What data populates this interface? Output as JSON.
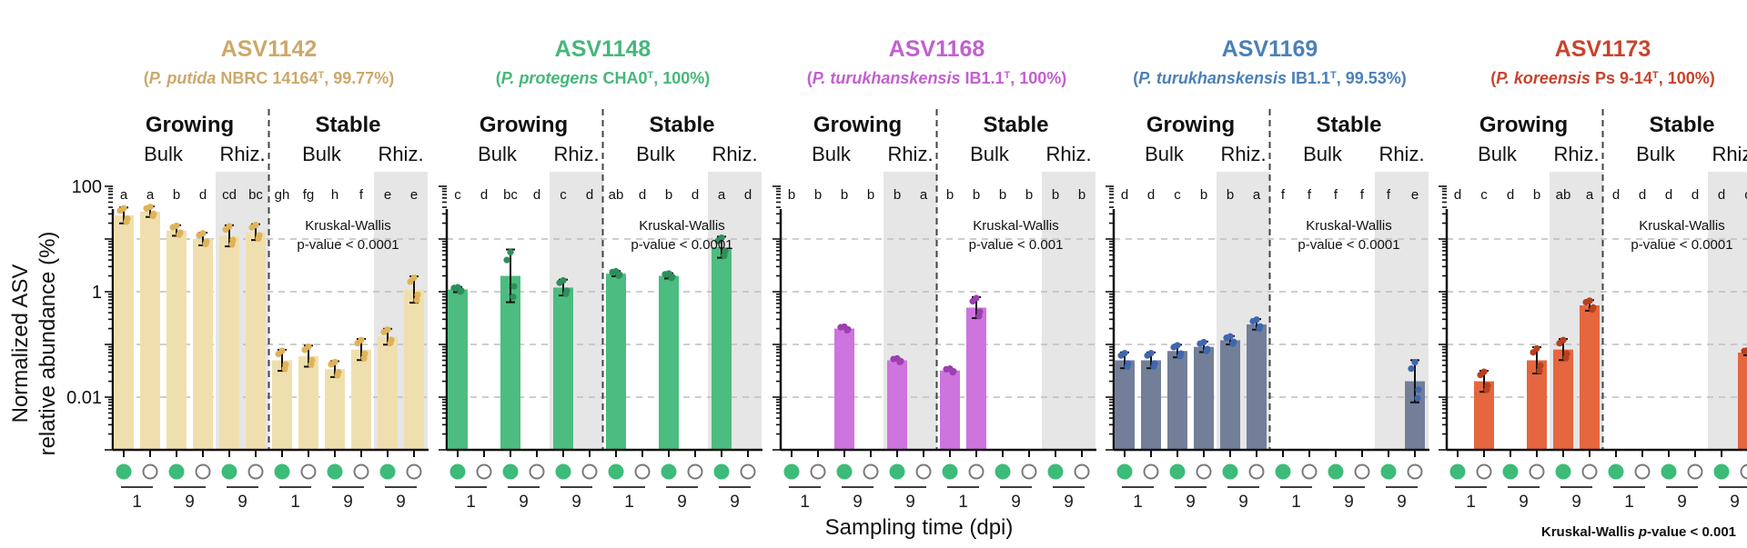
{
  "figure": {
    "ylabel_line1": "Normalized ASV",
    "ylabel_line2": "relative abundance (%)",
    "xlabel": "Sampling time (dpi)",
    "footnote_main": "Kruskal-Wallis ",
    "footnote_italic": "p",
    "footnote_tail": "-value < 0.001",
    "ytick_labels": [
      "100",
      "1",
      "0.01"
    ],
    "phase_growing": "Growing",
    "phase_stable": "Stable",
    "comp_bulk": "Bulk",
    "comp_rhiz": "Rhiz.",
    "colors": {
      "shade": "#e6e6e6",
      "marker_fill": "#3dbb78",
      "marker_stroke": "#7a7a7a",
      "ink": "#111111"
    }
  },
  "chart_data": [
    {
      "type": "bar",
      "asv": "ASV1142",
      "ref_italic": "P. putida",
      "ref_strain": " NBRC 14164",
      "ref_tail": ", 99.77%)",
      "title_color": "#cda86a",
      "bar_color": "#f0dfae",
      "dot_color": "#e0b35a",
      "kruskal_line1": "Kruskal-Wallis",
      "kruskal_line2": "p-value < 0.0001",
      "yscale": "log10",
      "ylim": [
        0.001,
        100
      ],
      "values": [
        28,
        33,
        14.5,
        10,
        11.5,
        13.5,
        0.05,
        0.06,
        0.034,
        0.08,
        0.14,
        1.1
      ],
      "errors": [
        0.15,
        0.1,
        0.1,
        0.12,
        0.2,
        0.15,
        0.2,
        0.2,
        0.15,
        0.2,
        0.15,
        0.25
      ],
      "letters": [
        "a",
        "a",
        "b",
        "d",
        "cd",
        "bc",
        "gh",
        "fg",
        "h",
        "f",
        "e",
        "e"
      ]
    },
    {
      "type": "bar",
      "asv": "ASV1148",
      "ref_italic": "P. protegens",
      "ref_strain": " CHA0",
      "ref_tail": ", 100%)",
      "title_color": "#47b77a",
      "bar_color": "#4cbc80",
      "dot_color": "#2e8f5a",
      "kruskal_line1": "Kruskal-Wallis",
      "kruskal_line2": "p-value < 0.0001",
      "yscale": "log10",
      "ylim": [
        0.001,
        100
      ],
      "values": [
        1.1,
        null,
        2,
        null,
        1.2,
        null,
        2.2,
        null,
        2.0,
        null,
        7.0,
        null
      ],
      "errors": [
        0.05,
        0,
        0.5,
        0,
        0.15,
        0,
        0.05,
        0,
        0.05,
        0,
        0.2,
        0
      ],
      "letters": [
        "c",
        "d",
        "bc",
        "d",
        "c",
        "d",
        "ab",
        "d",
        "b",
        "d",
        "a",
        "d"
      ]
    },
    {
      "type": "bar",
      "asv": "ASV1168",
      "ref_italic": "P. turukhanskensis",
      "ref_strain": " IB1.1",
      "ref_tail": ", 100%)",
      "title_color": "#c25fd0",
      "bar_color": "#cd74de",
      "dot_color": "#9c3fb0",
      "kruskal_line1": "Kruskal-Wallis",
      "kruskal_line2": "p-value < 0.001",
      "yscale": "log10",
      "ylim": [
        0.001,
        100
      ],
      "values": [
        null,
        null,
        0.2,
        null,
        0.05,
        null,
        0.032,
        0.5,
        null,
        null,
        null,
        null
      ],
      "errors": [
        0,
        0,
        0,
        0,
        0,
        0,
        0,
        0.2,
        0,
        0,
        0,
        0
      ],
      "letters": [
        "b",
        "b",
        "b",
        "b",
        "b",
        "a",
        "b",
        "b",
        "b",
        "b",
        "b",
        "b"
      ]
    },
    {
      "type": "bar",
      "asv": "ASV1169",
      "ref_italic": "P. turukhanskensis",
      "ref_strain": " IB1.1",
      "ref_tail": ", 99.53%)",
      "title_color": "#4b80b8",
      "bar_color": "#737f99",
      "dot_color": "#3f67b0",
      "kruskal_line1": "Kruskal-Wallis",
      "kruskal_line2": "p-value < 0.0001",
      "yscale": "log10",
      "ylim": [
        0.001,
        100
      ],
      "values": [
        0.05,
        0.05,
        0.075,
        0.09,
        0.12,
        0.24,
        null,
        null,
        null,
        null,
        null,
        0.02
      ],
      "errors": [
        0.15,
        0.15,
        0.12,
        0.1,
        0.08,
        0.1,
        0,
        0,
        0,
        0,
        0,
        0.4
      ],
      "letters": [
        "d",
        "d",
        "c",
        "b",
        "b",
        "a",
        "f",
        "f",
        "f",
        "f",
        "f",
        "e"
      ]
    },
    {
      "type": "bar",
      "asv": "ASV1173",
      "ref_italic": "P. koreensis",
      "ref_strain": " Ps 9-14",
      "ref_tail": ", 100%)",
      "title_color": "#c8432c",
      "bar_color": "#e5663f",
      "dot_color": "#b8401f",
      "kruskal_line1": "Kruskal-Wallis",
      "kruskal_line2": "p-value < 0.0001",
      "yscale": "log10",
      "ylim": [
        0.001,
        100
      ],
      "values": [
        null,
        0.02,
        null,
        0.05,
        0.08,
        0.55,
        null,
        null,
        null,
        null,
        null,
        0.07
      ],
      "errors": [
        0,
        0.2,
        0,
        0.25,
        0.2,
        0.1,
        0,
        0,
        0,
        0,
        0,
        0.05
      ],
      "letters": [
        "d",
        "c",
        "d",
        "b",
        "ab",
        "a",
        "d",
        "d",
        "d",
        "d",
        "d",
        "c"
      ]
    }
  ],
  "xgroups": [
    "1",
    "9",
    "9",
    "1",
    "9",
    "9"
  ],
  "markers": [
    "filled",
    "open",
    "filled",
    "open",
    "filled",
    "open",
    "filled",
    "open",
    "filled",
    "open",
    "filled",
    "open"
  ]
}
